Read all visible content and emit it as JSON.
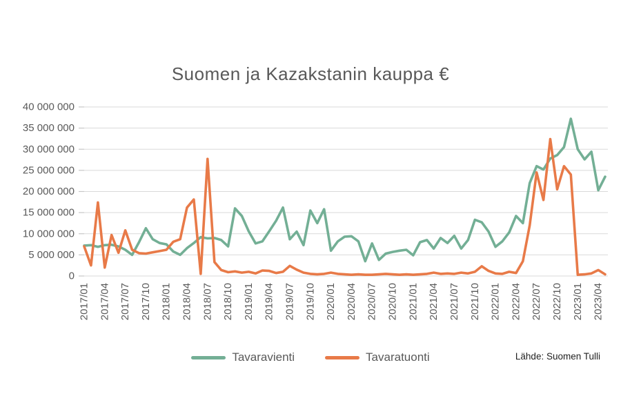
{
  "title": "Suomen ja Kazakstanin kauppa €",
  "source": "Lähde: Suomen Tulli",
  "colors": {
    "series_vienti": "#73AF95",
    "series_tuonti": "#E87A48",
    "grid": "#D9D9D9",
    "axis_text": "#595959"
  },
  "chart_data": {
    "type": "line",
    "title": "Suomen ja Kazakstanin kauppa €",
    "x_unit": "month",
    "x_start": "2017/01",
    "x_end": "2023/05",
    "grid": "horizontal",
    "grid_color": "#D9D9D9",
    "legend_position": "bottom",
    "ylim": [
      0,
      40000000
    ],
    "y_ticks": [
      0,
      5000000,
      10000000,
      15000000,
      20000000,
      25000000,
      30000000,
      35000000,
      40000000
    ],
    "y_tick_labels": [
      "0",
      "5 000 000",
      "10 000 000",
      "15 000 000",
      "20 000 000",
      "25 000 000",
      "30 000 000",
      "35 000 000",
      "40 000 000"
    ],
    "x_tick_every_months": 3,
    "x_tick_labels": [
      "2017/01",
      "2017/04",
      "2017/07",
      "2017/10",
      "2018/01",
      "2018/04",
      "2018/07",
      "2018/10",
      "2019/01",
      "2019/04",
      "2019/07",
      "2019/10",
      "2020/01",
      "2020/04",
      "2020/07",
      "2020/10",
      "2021/01",
      "2021/04",
      "2021/07",
      "2021/10",
      "2022/01",
      "2022/04",
      "2022/07",
      "2022/10",
      "2023/01",
      "2023/04"
    ],
    "series": [
      {
        "name": "Tavaravienti",
        "color": "#73AF95",
        "values": [
          7200000,
          7300000,
          6900000,
          7300000,
          7400000,
          7000000,
          6200000,
          5000000,
          8000000,
          11300000,
          8700000,
          7800000,
          7500000,
          5800000,
          5000000,
          6600000,
          7800000,
          9200000,
          8900000,
          9000000,
          8500000,
          7000000,
          16000000,
          14200000,
          10600000,
          7700000,
          8200000,
          10600000,
          13100000,
          16200000,
          8700000,
          10500000,
          7300000,
          15500000,
          12500000,
          15800000,
          6000000,
          8200000,
          9300000,
          9400000,
          8200000,
          3500000,
          7700000,
          3800000,
          5300000,
          5700000,
          6000000,
          6200000,
          4900000,
          8000000,
          8500000,
          6500000,
          9000000,
          7800000,
          9500000,
          6500000,
          8500000,
          13300000,
          12700000,
          10500000,
          6900000,
          8200000,
          10300000,
          14200000,
          12500000,
          22000000,
          26000000,
          25200000,
          27800000,
          28600000,
          30500000,
          37200000,
          30000000,
          27600000,
          29400000,
          20300000,
          23500000
        ]
      },
      {
        "name": "Tavaratuonti",
        "color": "#E87A48",
        "values": [
          7000000,
          2500000,
          17400000,
          2000000,
          9700000,
          5500000,
          10800000,
          6200000,
          5400000,
          5300000,
          5600000,
          5900000,
          6200000,
          8100000,
          8700000,
          16200000,
          18100000,
          500000,
          27700000,
          3300000,
          1400000,
          900000,
          1100000,
          800000,
          1000000,
          600000,
          1300000,
          1200000,
          700000,
          1000000,
          2400000,
          1500000,
          800000,
          500000,
          400000,
          500000,
          800000,
          500000,
          400000,
          300000,
          400000,
          300000,
          300000,
          400000,
          500000,
          400000,
          300000,
          400000,
          300000,
          400000,
          500000,
          800000,
          500000,
          600000,
          500000,
          800000,
          600000,
          1000000,
          2300000,
          1200000,
          600000,
          500000,
          1000000,
          700000,
          3500000,
          12000000,
          24500000,
          18000000,
          32400000,
          20500000,
          26000000,
          24000000,
          300000,
          400000,
          600000,
          1400000,
          400000
        ]
      }
    ]
  }
}
